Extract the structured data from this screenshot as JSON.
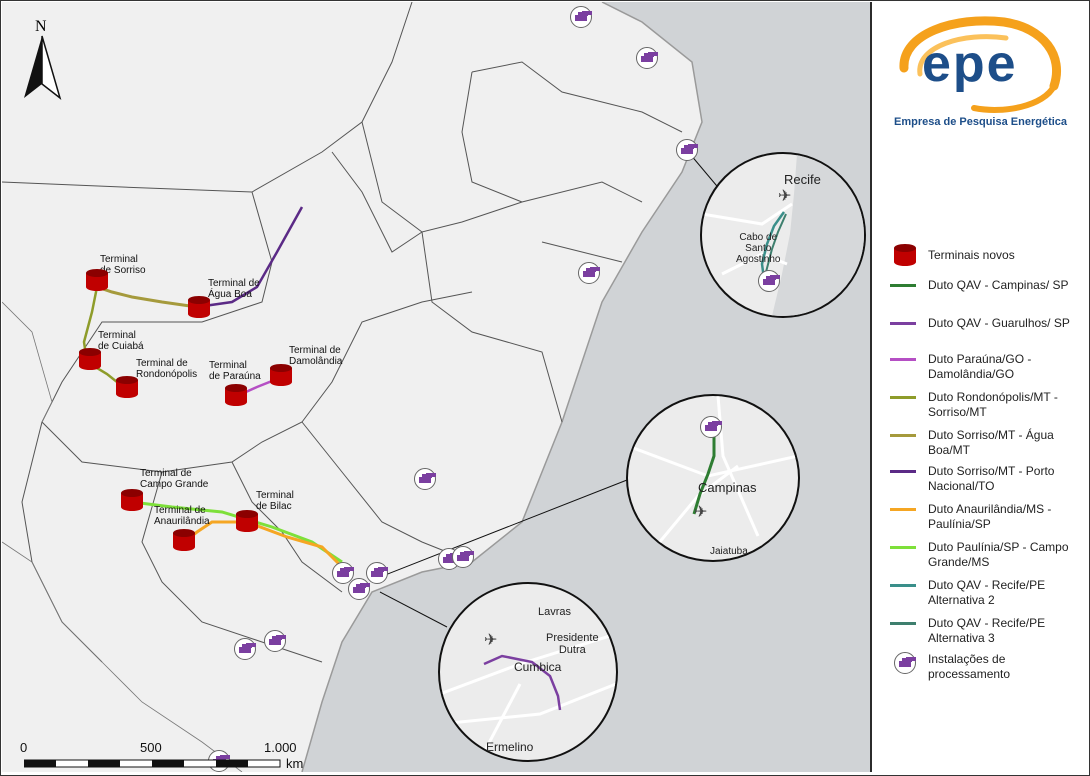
{
  "map": {
    "north_label": "N",
    "scale": {
      "labels": [
        "0",
        "500",
        "1.000"
      ],
      "unit": "km"
    },
    "terminals": [
      {
        "label": "Terminal\nde Sorriso"
      },
      {
        "label": "Terminal de\nÁgua Boa"
      },
      {
        "label": "Terminal\nde Cuiabá"
      },
      {
        "label": "Terminal de\nRondonópolis"
      },
      {
        "label": "Terminal\nde Paraúna"
      },
      {
        "label": "Terminal de\nDamolândia"
      },
      {
        "label": "Terminal de\nCampo Grande"
      },
      {
        "label": "Terminal de\nAnaurilândia"
      },
      {
        "label": "Terminal\nde Bilac"
      }
    ],
    "insets": {
      "recife": {
        "city": "Recife",
        "place": "Cabo de\nSanto\nAgostinho"
      },
      "campinas": {
        "city": "Campinas",
        "place": "Jaiatuba"
      },
      "sp": {
        "lavras": "Lavras",
        "dutra": "Presidente\nDutra",
        "cumbica": "Cumbica",
        "ermelino": "Ermelino"
      }
    }
  },
  "legend": {
    "logo_text": "epe",
    "company": "Empresa de Pesquisa Energética",
    "items": [
      {
        "label": "Terminais novos",
        "symbol": "cylinder",
        "color": "#c00000"
      },
      {
        "label": "Duto QAV - Campinas/ SP",
        "color": "#2e7d32"
      },
      {
        "label": "Duto QAV - Guarulhos/ SP",
        "color": "#7b3fa0"
      },
      {
        "label": "Duto Paraúna/GO - Damolândia/GO",
        "color": "#b54fc4"
      },
      {
        "label": "Duto Rondonópolis/MT - Sorriso/MT",
        "color": "#8e9c2a"
      },
      {
        "label": "Duto Sorriso/MT - Água Boa/MT",
        "color": "#a59a3c"
      },
      {
        "label": "Duto Sorriso/MT - Porto Nacional/TO",
        "color": "#5b2a86"
      },
      {
        "label": "Duto Anaurilândia/MS - Paulínia/SP",
        "color": "#f5a623"
      },
      {
        "label": "Duto Paulínia/SP - Campo Grande/MS",
        "color": "#7ee03a"
      },
      {
        "label": "Duto QAV - Recife/PE Alternativa 2",
        "color": "#3a8f8a"
      },
      {
        "label": "Duto QAV - Recife/PE Alternativa 3",
        "color": "#3e7f6e"
      },
      {
        "label": "Instalações de processamento",
        "symbol": "factory-icon",
        "color": "#7b3fa0"
      }
    ]
  }
}
